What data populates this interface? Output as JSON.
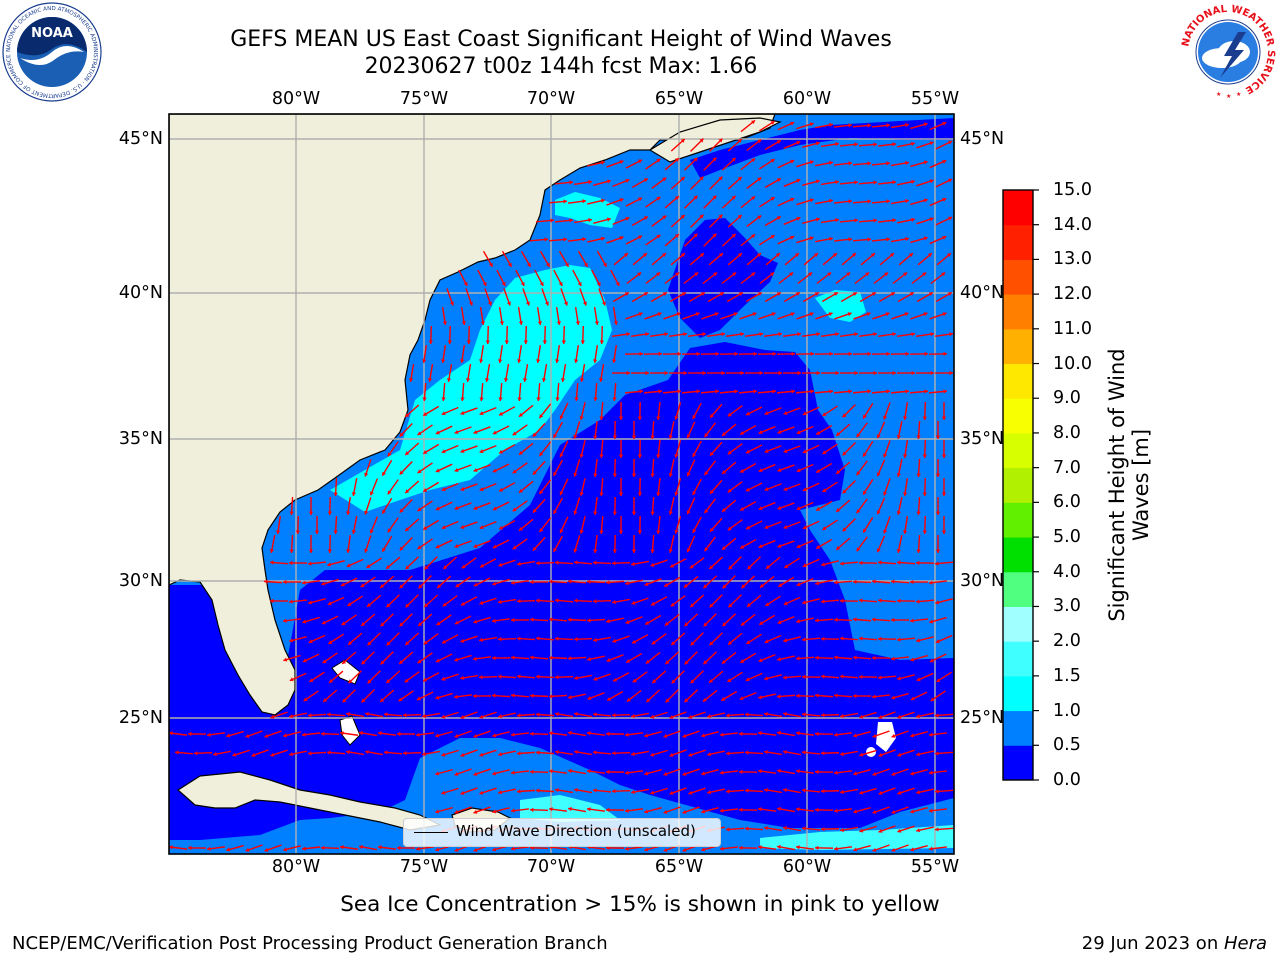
{
  "title": {
    "line1": "GEFS MEAN US East Coast Significant Height of Wind Waves",
    "line2": "20230627 t00z 144h fcst   Max: 1.66"
  },
  "map": {
    "lon_labels": [
      "80°W",
      "75°W",
      "70°W",
      "65°W",
      "60°W",
      "55°W"
    ],
    "lat_labels": [
      "45°N",
      "40°N",
      "35°N",
      "30°N",
      "25°N"
    ],
    "land_color": "#efefdc",
    "arrow_color": "#ff0000",
    "legend_label": "Wind Wave Direction (unscaled)"
  },
  "colorbar": {
    "label": "Significant Height of Wind Waves [m]",
    "label_line1": "Significant Height of Wind",
    "label_line2": "Waves [m]",
    "ticks": [
      "0.0",
      "0.5",
      "1.0",
      "1.5",
      "2.0",
      "3.0",
      "4.0",
      "5.0",
      "6.0",
      "7.0",
      "8.0",
      "9.0",
      "10.0",
      "11.0",
      "12.0",
      "13.0",
      "14.0",
      "15.0"
    ],
    "colors": [
      "#0000ff",
      "#0080ff",
      "#00ffff",
      "#40ffff",
      "#a0ffff",
      "#50ff80",
      "#00e000",
      "#60f000",
      "#b0f000",
      "#d8ff00",
      "#f8ff00",
      "#ffe800",
      "#ffb000",
      "#ff8000",
      "#ff5000",
      "#ff2000",
      "#ff0000"
    ]
  },
  "logos": {
    "noaa_text": "NOAA",
    "noaa_ring": "NATIONAL OCEANIC AND ATMOSPHERIC ADMINISTRATION · U.S. DEPARTMENT OF COMMERCE",
    "nws_ring": "NATIONAL WEATHER SERVICE"
  },
  "footnote": "Sea Ice Concentration > 15% is shown in pink to yellow",
  "credit": "NCEP/EMC/Verification Post Processing Product Generation Branch",
  "date": "29 Jun 2023 on ",
  "machine": "Hera"
}
